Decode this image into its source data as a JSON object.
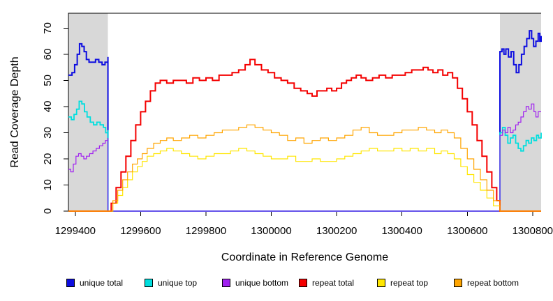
{
  "figure": {
    "background": "#ffffff",
    "axis_color": "#000000",
    "tick_label_color": "#000000",
    "shaded_region_color": "#d8d8d8"
  },
  "chart_data": {
    "type": "line",
    "title": "",
    "xlabel": "Coordinate in Reference Genome",
    "ylabel": "Read Coverage Depth",
    "xlim": [
      1299379,
      1300826
    ],
    "ylim": [
      0,
      75.7
    ],
    "x_ticks": [
      1299400,
      1299600,
      1299800,
      1300000,
      1300200,
      1300400,
      1300600,
      1300800
    ],
    "y_ticks": [
      0,
      10,
      20,
      30,
      40,
      50,
      60,
      70
    ],
    "grid": false,
    "legend_position": "bottom",
    "shaded_regions": [
      {
        "name": "left-flank-unique-region",
        "x0": 1299379,
        "x1": 1299500
      },
      {
        "name": "right-flank-unique-region",
        "x0": 1300700,
        "x1": 1300826
      }
    ],
    "series": [
      {
        "name": "unique total",
        "slug": "unique-total",
        "color": "#0d0de0",
        "lwd": 2,
        "points": [
          [
            1299379,
            52
          ],
          [
            1299390,
            53
          ],
          [
            1299398,
            56
          ],
          [
            1299406,
            60
          ],
          [
            1299413,
            64
          ],
          [
            1299420,
            63
          ],
          [
            1299427,
            61
          ],
          [
            1299434,
            58
          ],
          [
            1299442,
            57
          ],
          [
            1299452,
            57
          ],
          [
            1299462,
            58
          ],
          [
            1299472,
            57
          ],
          [
            1299482,
            56
          ],
          [
            1299491,
            57
          ],
          [
            1299500,
            59
          ],
          [
            1299500,
            0
          ],
          [
            1300700,
            0
          ],
          [
            1300700,
            61
          ],
          [
            1300706,
            62
          ],
          [
            1300712,
            60
          ],
          [
            1300718,
            62
          ],
          [
            1300726,
            59
          ],
          [
            1300734,
            61
          ],
          [
            1300742,
            56
          ],
          [
            1300750,
            53
          ],
          [
            1300758,
            56
          ],
          [
            1300766,
            60
          ],
          [
            1300774,
            63
          ],
          [
            1300782,
            66
          ],
          [
            1300790,
            69
          ],
          [
            1300797,
            66
          ],
          [
            1300803,
            63
          ],
          [
            1300810,
            65
          ],
          [
            1300817,
            68
          ],
          [
            1300822,
            65
          ],
          [
            1300826,
            67
          ]
        ]
      },
      {
        "name": "unique top",
        "slug": "unique-top",
        "color": "#00dede",
        "lwd": 1.8,
        "points": [
          [
            1299379,
            36
          ],
          [
            1299388,
            35
          ],
          [
            1299396,
            37
          ],
          [
            1299404,
            39
          ],
          [
            1299412,
            42
          ],
          [
            1299420,
            41
          ],
          [
            1299428,
            38
          ],
          [
            1299436,
            36
          ],
          [
            1299446,
            34
          ],
          [
            1299456,
            33
          ],
          [
            1299466,
            34
          ],
          [
            1299476,
            33
          ],
          [
            1299486,
            32
          ],
          [
            1299493,
            30
          ],
          [
            1299500,
            31
          ],
          [
            1299500,
            0
          ],
          [
            1300700,
            0
          ],
          [
            1300700,
            30
          ],
          [
            1300708,
            32
          ],
          [
            1300716,
            29
          ],
          [
            1300724,
            26
          ],
          [
            1300732,
            28
          ],
          [
            1300740,
            29
          ],
          [
            1300748,
            26
          ],
          [
            1300756,
            24
          ],
          [
            1300764,
            23
          ],
          [
            1300772,
            25
          ],
          [
            1300780,
            27
          ],
          [
            1300788,
            26
          ],
          [
            1300796,
            28
          ],
          [
            1300804,
            27
          ],
          [
            1300812,
            29
          ],
          [
            1300818,
            28
          ],
          [
            1300826,
            30
          ]
        ]
      },
      {
        "name": "unique bottom",
        "slug": "unique-bottom",
        "color": "#a020f0",
        "lwd": 1.2,
        "points": [
          [
            1299379,
            16
          ],
          [
            1299386,
            15
          ],
          [
            1299394,
            18
          ],
          [
            1299402,
            21
          ],
          [
            1299410,
            22
          ],
          [
            1299418,
            21
          ],
          [
            1299426,
            20
          ],
          [
            1299434,
            21
          ],
          [
            1299444,
            22
          ],
          [
            1299454,
            23
          ],
          [
            1299464,
            24
          ],
          [
            1299474,
            25
          ],
          [
            1299484,
            26
          ],
          [
            1299492,
            27
          ],
          [
            1299500,
            28
          ],
          [
            1299500,
            0
          ],
          [
            1300700,
            0
          ],
          [
            1300700,
            29
          ],
          [
            1300708,
            31
          ],
          [
            1300716,
            30
          ],
          [
            1300724,
            32
          ],
          [
            1300732,
            30
          ],
          [
            1300740,
            31
          ],
          [
            1300748,
            33
          ],
          [
            1300756,
            34
          ],
          [
            1300764,
            36
          ],
          [
            1300772,
            38
          ],
          [
            1300780,
            40
          ],
          [
            1300788,
            39
          ],
          [
            1300796,
            41
          ],
          [
            1300804,
            38
          ],
          [
            1300810,
            36
          ],
          [
            1300817,
            38
          ],
          [
            1300826,
            38
          ]
        ]
      },
      {
        "name": "repeat total",
        "slug": "repeat-total",
        "color": "#f40000",
        "lwd": 2,
        "points": [
          [
            1299379,
            0
          ],
          [
            1299500,
            0
          ],
          [
            1299510,
            3
          ],
          [
            1299525,
            9
          ],
          [
            1299540,
            15
          ],
          [
            1299555,
            21
          ],
          [
            1299570,
            27
          ],
          [
            1299585,
            33
          ],
          [
            1299600,
            38
          ],
          [
            1299615,
            42
          ],
          [
            1299630,
            46
          ],
          [
            1299645,
            49
          ],
          [
            1299660,
            50
          ],
          [
            1299680,
            49
          ],
          [
            1299700,
            50
          ],
          [
            1299720,
            50
          ],
          [
            1299740,
            49
          ],
          [
            1299760,
            51
          ],
          [
            1299780,
            50
          ],
          [
            1299800,
            51
          ],
          [
            1299820,
            50
          ],
          [
            1299840,
            52
          ],
          [
            1299860,
            52
          ],
          [
            1299880,
            53
          ],
          [
            1299900,
            54
          ],
          [
            1299920,
            56
          ],
          [
            1299935,
            58
          ],
          [
            1299950,
            56
          ],
          [
            1299970,
            54
          ],
          [
            1299990,
            53
          ],
          [
            1300010,
            51
          ],
          [
            1300030,
            50
          ],
          [
            1300050,
            49
          ],
          [
            1300070,
            47
          ],
          [
            1300090,
            46
          ],
          [
            1300110,
            45
          ],
          [
            1300125,
            44
          ],
          [
            1300140,
            46
          ],
          [
            1300155,
            46
          ],
          [
            1300170,
            47
          ],
          [
            1300185,
            46
          ],
          [
            1300200,
            47
          ],
          [
            1300215,
            49
          ],
          [
            1300230,
            50
          ],
          [
            1300245,
            51
          ],
          [
            1300260,
            52
          ],
          [
            1300275,
            51
          ],
          [
            1300290,
            50
          ],
          [
            1300310,
            51
          ],
          [
            1300330,
            52
          ],
          [
            1300350,
            51
          ],
          [
            1300370,
            52
          ],
          [
            1300390,
            52
          ],
          [
            1300410,
            53
          ],
          [
            1300430,
            54
          ],
          [
            1300450,
            54
          ],
          [
            1300465,
            55
          ],
          [
            1300480,
            54
          ],
          [
            1300495,
            53
          ],
          [
            1300510,
            54
          ],
          [
            1300525,
            52
          ],
          [
            1300540,
            53
          ],
          [
            1300555,
            51
          ],
          [
            1300570,
            47
          ],
          [
            1300585,
            43
          ],
          [
            1300600,
            38
          ],
          [
            1300615,
            33
          ],
          [
            1300630,
            27
          ],
          [
            1300645,
            21
          ],
          [
            1300660,
            15
          ],
          [
            1300675,
            9
          ],
          [
            1300690,
            4
          ],
          [
            1300700,
            0
          ],
          [
            1300826,
            0
          ]
        ]
      },
      {
        "name": "repeat top",
        "slug": "repeat-top",
        "color": "#ffe600",
        "lwd": 1.2,
        "points": [
          [
            1299379,
            0
          ],
          [
            1299500,
            0
          ],
          [
            1299515,
            3
          ],
          [
            1299530,
            6
          ],
          [
            1299545,
            9
          ],
          [
            1299560,
            12
          ],
          [
            1299575,
            15
          ],
          [
            1299590,
            17
          ],
          [
            1299605,
            19
          ],
          [
            1299620,
            21
          ],
          [
            1299640,
            22
          ],
          [
            1299660,
            23
          ],
          [
            1299680,
            24
          ],
          [
            1299700,
            23
          ],
          [
            1299725,
            22
          ],
          [
            1299750,
            21
          ],
          [
            1299775,
            20
          ],
          [
            1299800,
            21
          ],
          [
            1299825,
            22
          ],
          [
            1299850,
            22
          ],
          [
            1299875,
            23
          ],
          [
            1299900,
            24
          ],
          [
            1299925,
            23
          ],
          [
            1299950,
            22
          ],
          [
            1299975,
            21
          ],
          [
            1300000,
            20
          ],
          [
            1300025,
            20
          ],
          [
            1300050,
            21
          ],
          [
            1300075,
            19
          ],
          [
            1300100,
            19
          ],
          [
            1300125,
            20
          ],
          [
            1300150,
            19
          ],
          [
            1300175,
            19
          ],
          [
            1300200,
            20
          ],
          [
            1300225,
            21
          ],
          [
            1300250,
            22
          ],
          [
            1300275,
            23
          ],
          [
            1300300,
            24
          ],
          [
            1300325,
            23
          ],
          [
            1300350,
            23
          ],
          [
            1300375,
            24
          ],
          [
            1300400,
            23
          ],
          [
            1300425,
            24
          ],
          [
            1300450,
            23
          ],
          [
            1300475,
            24
          ],
          [
            1300500,
            22
          ],
          [
            1300520,
            23
          ],
          [
            1300540,
            22
          ],
          [
            1300560,
            20
          ],
          [
            1300580,
            17
          ],
          [
            1300600,
            14
          ],
          [
            1300620,
            11
          ],
          [
            1300640,
            8
          ],
          [
            1300660,
            5
          ],
          [
            1300680,
            2
          ],
          [
            1300700,
            0
          ],
          [
            1300826,
            0
          ]
        ]
      },
      {
        "name": "repeat bottom",
        "slug": "repeat-bottom",
        "color": "#ffa500",
        "lwd": 1.2,
        "points": [
          [
            1299379,
            0
          ],
          [
            1299500,
            0
          ],
          [
            1299515,
            4
          ],
          [
            1299530,
            8
          ],
          [
            1299545,
            12
          ],
          [
            1299560,
            15
          ],
          [
            1299575,
            18
          ],
          [
            1299590,
            20
          ],
          [
            1299605,
            22
          ],
          [
            1299620,
            24
          ],
          [
            1299640,
            26
          ],
          [
            1299660,
            27
          ],
          [
            1299680,
            28
          ],
          [
            1299700,
            27
          ],
          [
            1299725,
            28
          ],
          [
            1299750,
            29
          ],
          [
            1299775,
            28
          ],
          [
            1299800,
            29
          ],
          [
            1299825,
            30
          ],
          [
            1299850,
            31
          ],
          [
            1299875,
            31
          ],
          [
            1299900,
            32
          ],
          [
            1299925,
            33
          ],
          [
            1299950,
            32
          ],
          [
            1299975,
            31
          ],
          [
            1300000,
            30
          ],
          [
            1300025,
            29
          ],
          [
            1300050,
            27
          ],
          [
            1300075,
            28
          ],
          [
            1300100,
            26
          ],
          [
            1300125,
            27
          ],
          [
            1300150,
            28
          ],
          [
            1300175,
            27
          ],
          [
            1300200,
            28
          ],
          [
            1300225,
            29
          ],
          [
            1300250,
            31
          ],
          [
            1300275,
            32
          ],
          [
            1300300,
            30
          ],
          [
            1300325,
            29
          ],
          [
            1300350,
            29
          ],
          [
            1300375,
            30
          ],
          [
            1300400,
            31
          ],
          [
            1300425,
            31
          ],
          [
            1300450,
            32
          ],
          [
            1300475,
            31
          ],
          [
            1300500,
            30
          ],
          [
            1300520,
            31
          ],
          [
            1300540,
            30
          ],
          [
            1300560,
            28
          ],
          [
            1300580,
            24
          ],
          [
            1300600,
            20
          ],
          [
            1300620,
            16
          ],
          [
            1300640,
            12
          ],
          [
            1300660,
            8
          ],
          [
            1300680,
            4
          ],
          [
            1300700,
            0
          ],
          [
            1300826,
            0
          ]
        ]
      }
    ]
  }
}
